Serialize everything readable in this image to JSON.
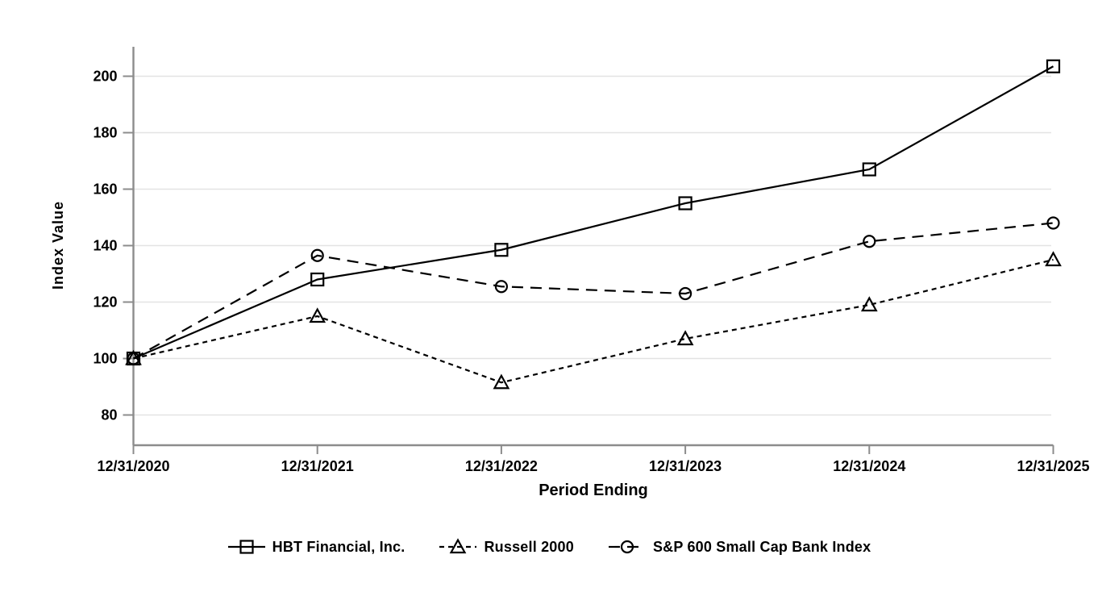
{
  "chart_data": {
    "type": "line",
    "title": "",
    "xlabel": "Period Ending",
    "ylabel": "Index Value",
    "categories": [
      "12/31/2020",
      "12/31/2021",
      "12/31/2022",
      "12/31/2023",
      "12/31/2024",
      "12/31/2025"
    ],
    "series": [
      {
        "name": "HBT Financial, Inc.",
        "slug": "hbt-financial",
        "values": [
          100,
          128,
          138.5,
          155,
          167,
          203.5
        ],
        "marker": "square",
        "line_style": "solid",
        "color": "#000000"
      },
      {
        "name": "Russell 2000",
        "slug": "russell-2000",
        "values": [
          100,
          115,
          91.5,
          107,
          119,
          135
        ],
        "marker": "triangle",
        "line_style": "short-dash",
        "color": "#000000"
      },
      {
        "name": "S&P 600 Small Cap Bank Index",
        "slug": "sp-600-small-cap-bank",
        "values": [
          100,
          136.5,
          125.5,
          123,
          141.5,
          148
        ],
        "marker": "circle",
        "line_style": "long-dash",
        "color": "#000000"
      }
    ],
    "yticks": [
      80,
      100,
      120,
      140,
      160,
      180,
      200
    ],
    "ylim": [
      69,
      211
    ],
    "grid": "horizontal-only",
    "legend_position": "bottom",
    "colors": {
      "series": "#000000",
      "axis": "#8c8c8c",
      "gridline": "#e3e3e3",
      "text": "#000000",
      "background": "#ffffff"
    }
  }
}
